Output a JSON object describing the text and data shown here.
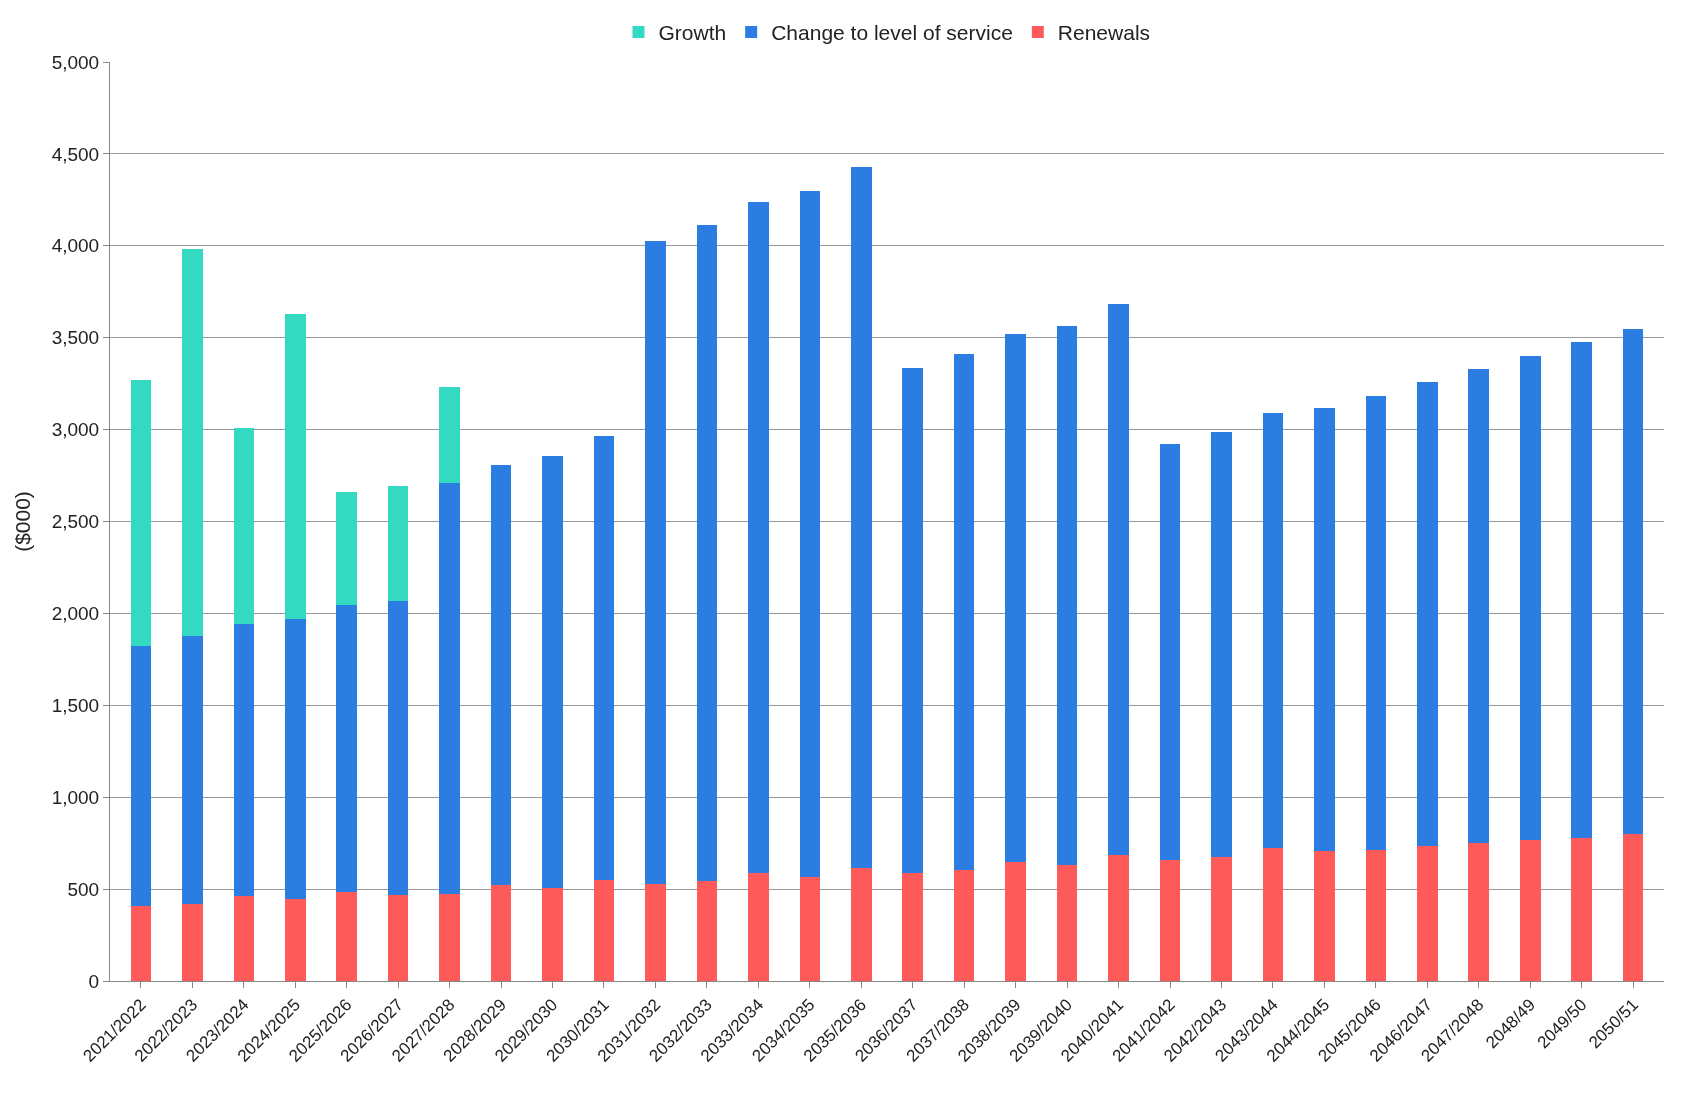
{
  "chart_data": {
    "type": "bar",
    "stacked": true,
    "ylabel": "($000)",
    "legend": "top",
    "grid": "y",
    "categories": [
      "2021/2022",
      "2022/2023",
      "2023/2024",
      "2024/2025",
      "2025/2026",
      "2026/2027",
      "2027/2028",
      "2028/2029",
      "2029/2030",
      "2030/2031",
      "2031/2032",
      "2032/2033",
      "2033/2034",
      "2034/2035",
      "2035/2036",
      "2036/2037",
      "2037/2038",
      "2038/2039",
      "2039/2040",
      "2040/2041",
      "2041/2042",
      "2042/2043",
      "2043/2044",
      "2044/2045",
      "2045/2046",
      "2046/2047",
      "2047/2048",
      "2048/49",
      "2049/50",
      "2050/51"
    ],
    "ylim": [
      0,
      5000
    ],
    "yticks": [
      0,
      {
        "value": 500,
        "label": "500"
      },
      {
        "value": 1000,
        "label": "1,000"
      },
      {
        "value": 1500,
        "label": "1,500"
      },
      {
        "value": 2000,
        "label": "2,000"
      },
      {
        "value": 2500,
        "label": "2,500"
      },
      {
        "value": 3000,
        "label": "3,000"
      },
      {
        "value": 3500,
        "label": "3,500"
      },
      {
        "value": 4000,
        "label": "4,000"
      },
      {
        "value": 4500,
        "label": "4,500"
      },
      {
        "value": 5000,
        "label": "5,000"
      }
    ],
    "series": [
      {
        "name": "Renewals",
        "color": "#ff5a5a",
        "values": [
          410,
          420,
          460,
          445,
          485,
          470,
          475,
          520,
          505,
          550,
          530,
          545,
          585,
          565,
          615,
          590,
          605,
          650,
          630,
          685,
          660,
          675,
          725,
          705,
          715,
          735,
          750,
          765,
          780,
          800
        ]
      },
      {
        "name": "Change to level of service",
        "color": "#2b7de1",
        "values": [
          1413,
          1455,
          1485,
          1525,
          1560,
          1600,
          2235,
          2290,
          2350,
          2415,
          3495,
          3570,
          3655,
          3735,
          3815,
          2745,
          2805,
          2870,
          2935,
          3000,
          2260,
          2310,
          2365,
          2415,
          2470,
          2525,
          2580,
          2635,
          2695,
          2750
        ]
      },
      {
        "name": "Growth",
        "color": "#33d9c1",
        "values": [
          1448,
          2105,
          1065,
          1660,
          615,
          625,
          520,
          null,
          null,
          null,
          null,
          null,
          null,
          null,
          null,
          null,
          null,
          null,
          null,
          null,
          null,
          null,
          null,
          null,
          null,
          null,
          null,
          null,
          null,
          null
        ]
      }
    ]
  }
}
